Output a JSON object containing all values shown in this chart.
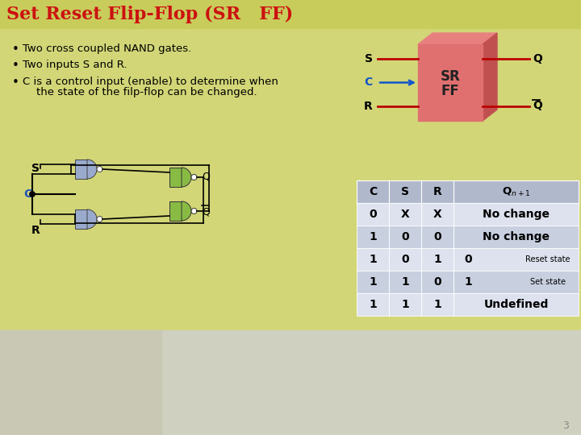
{
  "title": "Set Reset Flip-Flop (SR   FF)",
  "bg_color": "#d2d677",
  "title_bar_color": "#c8cc5a",
  "title_color": "#cc1111",
  "bullet_points": [
    "Two cross coupled NAND gates.",
    "Two inputs S and R.",
    "C is a control input (enable) to determine when",
    "    the state of the filp-flop can be changed."
  ],
  "table_headers": [
    "C",
    "S",
    "R",
    "Qn+1"
  ],
  "table_rows": [
    [
      "0",
      "X",
      "X",
      "No change",
      ""
    ],
    [
      "1",
      "0",
      "0",
      "No change",
      ""
    ],
    [
      "1",
      "0",
      "1",
      "0",
      "Reset state"
    ],
    [
      "1",
      "1",
      "0",
      "1",
      "Set state"
    ],
    [
      "1",
      "1",
      "1",
      "Undefined",
      ""
    ]
  ],
  "table_header_bg": "#b0b8cc",
  "table_row_bg1": "#dde2ee",
  "table_row_bg2": "#c8d0e0",
  "page_number": "3",
  "bottom_gray": "#c8c8b8",
  "sr_box_color": "#e07070",
  "sr_box_top": "#e88080",
  "sr_box_right": "#c05050",
  "wire_color": "#bb0000",
  "gate_blue": "#99aacc",
  "gate_green": "#88bb44"
}
